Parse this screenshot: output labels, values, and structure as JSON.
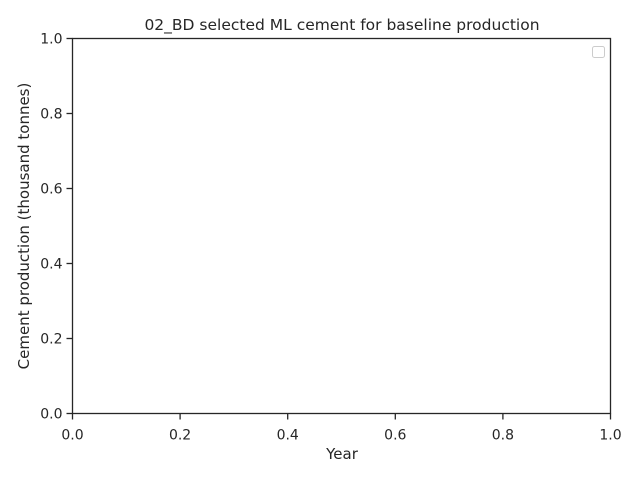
{
  "chart_data": {
    "type": "line",
    "title": "02_BD selected ML cement for baseline production",
    "xlabel": "Year",
    "ylabel": "Cement production (thousand tonnes)",
    "xlim": [
      0.0,
      1.0
    ],
    "ylim": [
      0.0,
      1.0
    ],
    "xticks": [
      "0.0",
      "0.2",
      "0.4",
      "0.6",
      "0.8",
      "1.0"
    ],
    "yticks": [
      "0.0",
      "0.2",
      "0.4",
      "0.6",
      "0.8",
      "1.0"
    ],
    "series": [],
    "grid": false,
    "legend": {
      "placement": "top-right",
      "entries": []
    }
  },
  "colors": {
    "axis": "#262626",
    "text": "#262626",
    "legend_border": "#cccccc"
  }
}
